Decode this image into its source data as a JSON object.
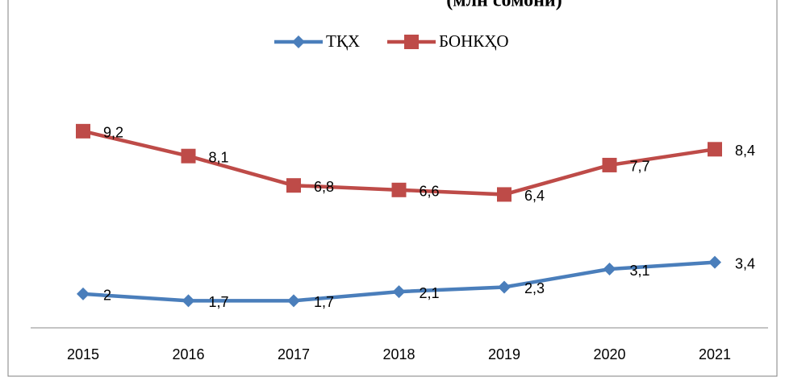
{
  "chart_data": {
    "type": "line",
    "title": "(млн сомонӣ)",
    "categories": [
      "2015",
      "2016",
      "2017",
      "2018",
      "2019",
      "2020",
      "2021"
    ],
    "series": [
      {
        "name": "ТҚХ",
        "color": "#4a7ebb",
        "marker": "diamond",
        "values": [
          2,
          1.7,
          1.7,
          2.1,
          2.3,
          3.1,
          3.4
        ],
        "value_labels": [
          "2",
          "1,7",
          "1,7",
          "2,1",
          "2,3",
          "3,1",
          "3,4"
        ]
      },
      {
        "name": "БОНКҲО",
        "color": "#be4b48",
        "marker": "square",
        "values": [
          9.2,
          8.1,
          6.8,
          6.6,
          6.4,
          7.7,
          8.4
        ],
        "value_labels": [
          "9,2",
          "8,1",
          "6,8",
          "6,6",
          "6,4",
          "7,7",
          "8,4"
        ]
      }
    ],
    "ylim": [
      0.5,
      10
    ],
    "legend": "top"
  }
}
